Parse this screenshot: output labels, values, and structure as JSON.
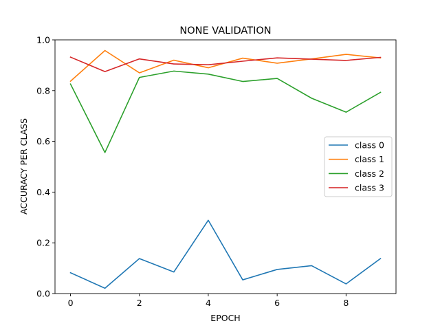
{
  "chart_data": {
    "type": "line",
    "title": "NONE VALIDATION",
    "xlabel": "EPOCH",
    "ylabel": "ACCURACY PER CLASS",
    "xlim": [
      -0.45,
      9.45
    ],
    "ylim": [
      0.0,
      1.0
    ],
    "xticks": [
      0,
      2,
      4,
      6,
      8
    ],
    "xtick_labels": [
      "0",
      "2",
      "4",
      "6",
      "8"
    ],
    "yticks": [
      0.0,
      0.2,
      0.4,
      0.6,
      0.8,
      1.0
    ],
    "ytick_labels": [
      "0.0",
      "0.2",
      "0.4",
      "0.6",
      "0.8",
      "1.0"
    ],
    "grid": false,
    "legend_position": "center-right",
    "x": [
      0,
      1,
      2,
      3,
      4,
      5,
      6,
      7,
      8,
      9
    ],
    "series": [
      {
        "name": "class 0",
        "color": "#1f77b4",
        "values": [
          0.082,
          0.021,
          0.138,
          0.085,
          0.289,
          0.054,
          0.095,
          0.11,
          0.038,
          0.138
        ]
      },
      {
        "name": "class 1",
        "color": "#ff7f0e",
        "values": [
          0.837,
          0.958,
          0.87,
          0.92,
          0.89,
          0.928,
          0.908,
          0.925,
          0.943,
          0.929
        ]
      },
      {
        "name": "class 2",
        "color": "#2ca02c",
        "values": [
          0.826,
          0.556,
          0.852,
          0.877,
          0.865,
          0.836,
          0.848,
          0.77,
          0.715,
          0.793
        ]
      },
      {
        "name": "class 3",
        "color": "#d62728",
        "values": [
          0.932,
          0.875,
          0.925,
          0.905,
          0.902,
          0.916,
          0.929,
          0.924,
          0.919,
          0.931
        ]
      }
    ]
  }
}
